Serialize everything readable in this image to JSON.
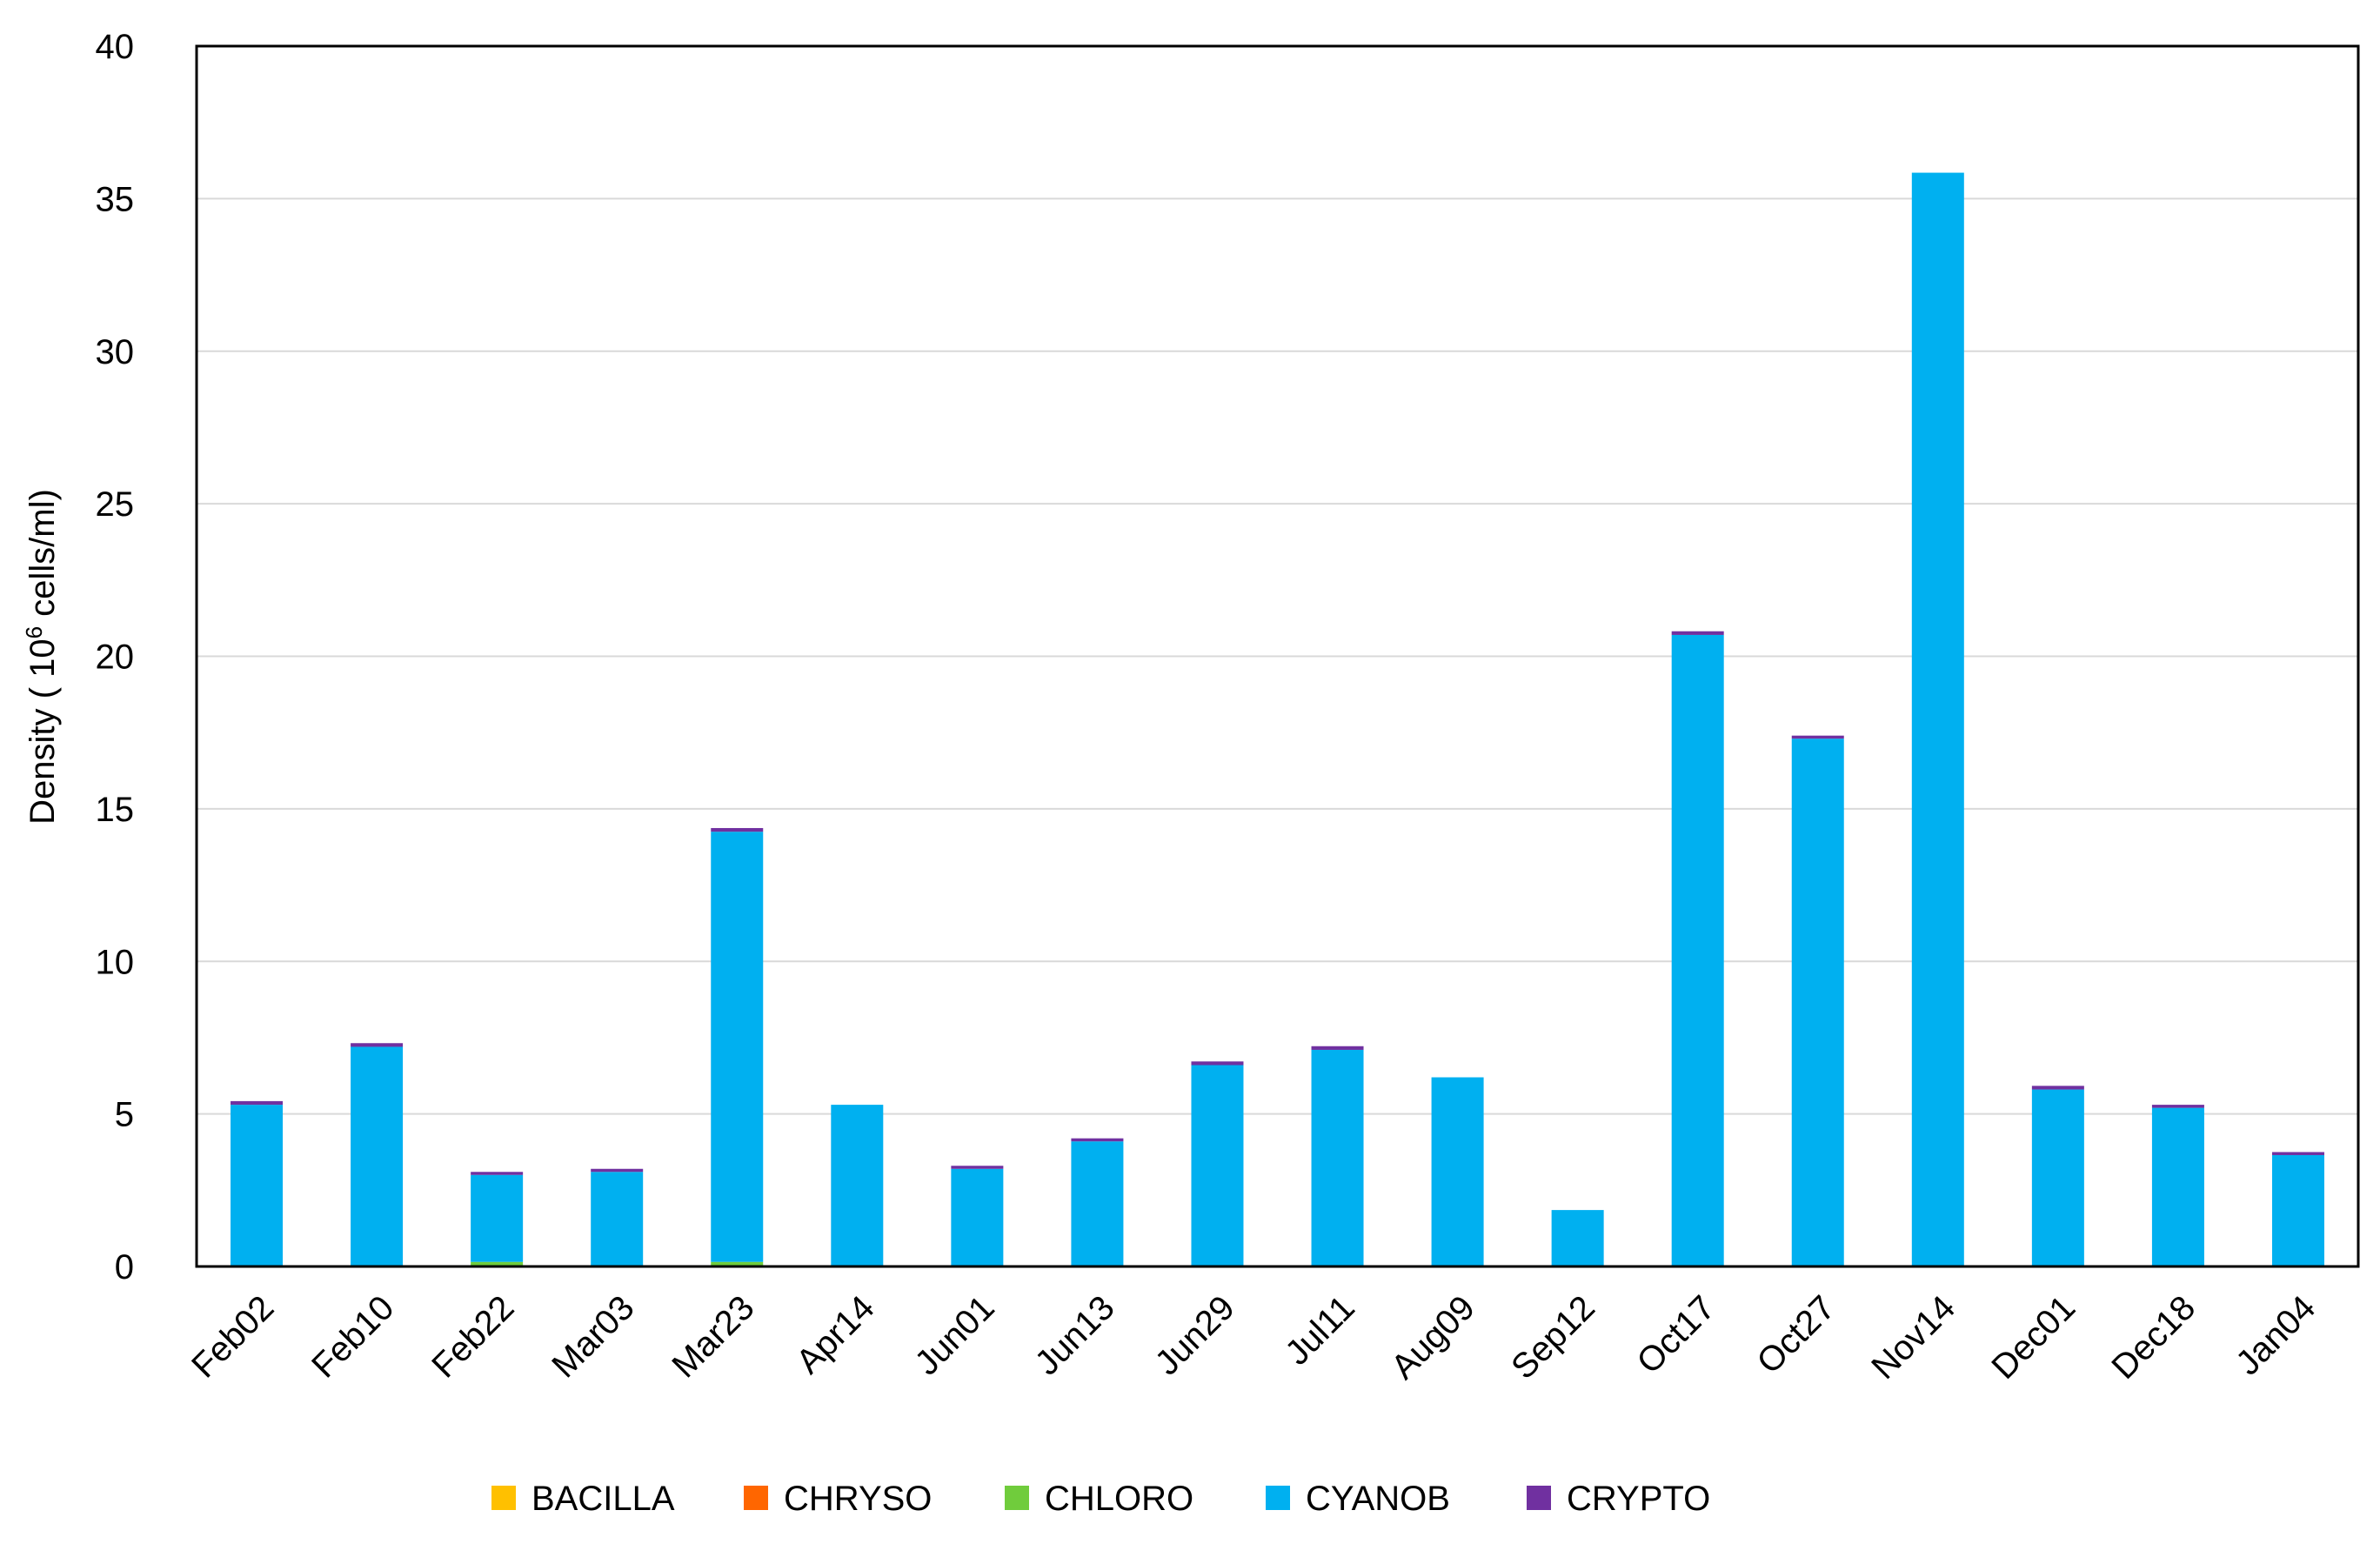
{
  "chart_data": {
    "type": "bar",
    "stacked": true,
    "title": "",
    "xlabel": "",
    "ylabel_main": "Density ( 10",
    "ylabel_sup": "6",
    "ylabel_tail": " cells/ml)",
    "ylim": [
      0,
      40
    ],
    "yticks": [
      0,
      5,
      10,
      15,
      20,
      25,
      30,
      35,
      40
    ],
    "grid": true,
    "legend_position": "bottom",
    "categories": [
      "Feb02",
      "Feb10",
      "Feb22",
      "Mar03",
      "Mar23",
      "Apr14",
      "Jun01",
      "Jun13",
      "Jun29",
      "Jul11",
      "Aug09",
      "Sep12",
      "Oct17",
      "Oct27",
      "Nov14",
      "Dec01",
      "Dec18",
      "Jan04"
    ],
    "series": [
      {
        "name": "BACILLA",
        "color": "#FFC000",
        "values": [
          0,
          0,
          0,
          0,
          0,
          0,
          0,
          0,
          0,
          0,
          0,
          0,
          0,
          0,
          0,
          0,
          0,
          0
        ]
      },
      {
        "name": "CHRYSO",
        "color": "#FF6600",
        "values": [
          0,
          0,
          0,
          0,
          0,
          0,
          0,
          0,
          0,
          0,
          0,
          0,
          0,
          0,
          0,
          0,
          0,
          0
        ]
      },
      {
        "name": "CHLORO",
        "color": "#70CC3C",
        "values": [
          0,
          0,
          0.15,
          0,
          0.15,
          0,
          0,
          0,
          0,
          0,
          0,
          0,
          0,
          0,
          0,
          0,
          0,
          0
        ]
      },
      {
        "name": "CYANOB",
        "color": "#00B0F0",
        "values": [
          5.3,
          7.2,
          2.85,
          3.1,
          14.1,
          5.3,
          3.2,
          4.1,
          6.6,
          7.1,
          6.2,
          1.85,
          20.7,
          17.3,
          35.85,
          5.8,
          5.2,
          3.65
        ]
      },
      {
        "name": "CRYPTO",
        "color": "#7030A0",
        "values": [
          0.12,
          0.12,
          0.1,
          0.1,
          0.12,
          0,
          0.1,
          0.1,
          0.12,
          0.12,
          0,
          0,
          0.12,
          0.1,
          0,
          0.12,
          0.1,
          0.1
        ]
      }
    ]
  }
}
